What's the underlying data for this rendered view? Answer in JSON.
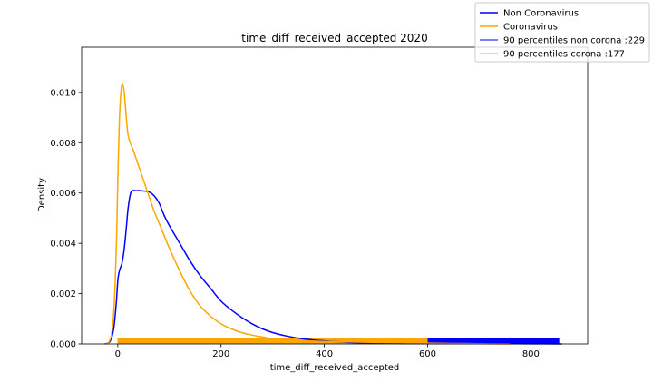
{
  "chart_data": {
    "type": "line",
    "title": "time_diff_received_accepted 2020",
    "xlabel": "time_diff_received_accepted",
    "ylabel": "Density",
    "xlim": [
      -70,
      910
    ],
    "ylim": [
      0,
      0.0118
    ],
    "xticks": [
      0,
      200,
      400,
      600,
      800
    ],
    "xtick_labels": [
      "0",
      "200",
      "400",
      "600",
      "800"
    ],
    "yticks": [
      0,
      0.002,
      0.004,
      0.006,
      0.008,
      0.01
    ],
    "ytick_labels": [
      "0.000",
      "0.002",
      "0.004",
      "0.006",
      "0.008",
      "0.010"
    ],
    "grid": false,
    "legend_position": "top-right",
    "series": [
      {
        "name": "Non Coronavirus",
        "color": "#0000ff",
        "x": [
          -25,
          -15,
          -8,
          -3,
          0,
          3,
          8,
          12,
          16,
          20,
          25,
          30,
          35,
          40,
          50,
          60,
          70,
          80,
          90,
          100,
          120,
          140,
          160,
          180,
          200,
          220,
          240,
          260,
          280,
          300,
          330,
          360,
          400,
          440,
          480,
          520,
          560,
          600,
          650,
          700,
          750,
          800,
          860
        ],
        "y": [
          0,
          0.0001,
          0.0006,
          0.0016,
          0.0025,
          0.0029,
          0.0032,
          0.0037,
          0.0045,
          0.0054,
          0.006,
          0.0061,
          0.00609,
          0.0061,
          0.00608,
          0.00605,
          0.0059,
          0.0056,
          0.0051,
          0.0047,
          0.004,
          0.0033,
          0.0027,
          0.0022,
          0.0017,
          0.00135,
          0.00105,
          0.0008,
          0.0006,
          0.00045,
          0.0003,
          0.0002,
          0.00012,
          7e-05,
          4e-05,
          3e-05,
          2e-05,
          1.5e-05,
          1e-05,
          1e-05,
          8e-06,
          5e-06,
          0
        ]
      },
      {
        "name": "Coronavirus",
        "color": "#ffa500",
        "x": [
          -25,
          -18,
          -12,
          -8,
          -5,
          -2,
          0,
          3,
          5,
          8,
          12,
          15,
          20,
          30,
          40,
          50,
          60,
          70,
          80,
          90,
          100,
          120,
          140,
          160,
          180,
          200,
          220,
          240,
          260,
          280,
          300,
          330,
          360,
          400,
          450,
          500,
          550,
          600,
          650,
          700,
          760
        ],
        "y": [
          0,
          5e-05,
          0.0004,
          0.0012,
          0.0025,
          0.0045,
          0.0065,
          0.0088,
          0.0097,
          0.0103,
          0.0101,
          0.0094,
          0.0083,
          0.0077,
          0.0071,
          0.0065,
          0.0059,
          0.0053,
          0.0048,
          0.0043,
          0.0038,
          0.0029,
          0.0021,
          0.0015,
          0.0011,
          0.0008,
          0.0006,
          0.00045,
          0.00035,
          0.00028,
          0.0002,
          0.00015,
          0.00012,
          0.0001,
          8e-05,
          6e-05,
          5e-05,
          3e-05,
          2e-05,
          1e-05,
          0
        ]
      }
    ],
    "rug": [
      {
        "name": "90 percentiles non corona :229",
        "color": "#0000ff",
        "x_range": [
          0,
          855
        ],
        "sparse_values": [
          520,
          530,
          540,
          548,
          556,
          563,
          571,
          578,
          585,
          592,
          598,
          604,
          610,
          617,
          623,
          629,
          635,
          641,
          646,
          652,
          658,
          664,
          670,
          676,
          682,
          688,
          694,
          700,
          706,
          712,
          718,
          724,
          730,
          736,
          742,
          748,
          754,
          760,
          766,
          772,
          778,
          784,
          790,
          796,
          802,
          808,
          814,
          820,
          826,
          832,
          838,
          845,
          852
        ],
        "height": 0.00025
      },
      {
        "name": "90 percentiles corona :177",
        "color": "#ffa500",
        "x_range": [
          0,
          600
        ],
        "sparse_values": [],
        "height": 0.00025
      }
    ]
  }
}
